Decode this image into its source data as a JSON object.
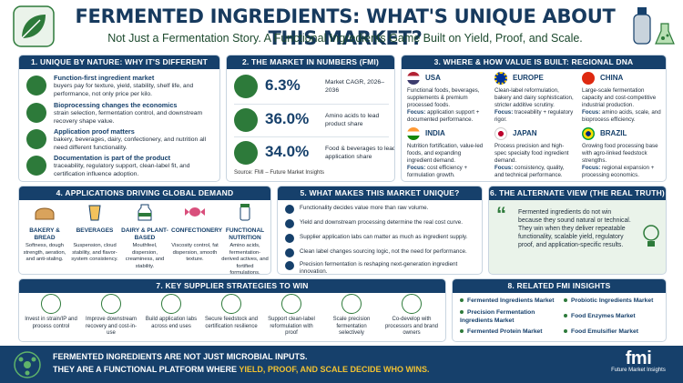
{
  "header": {
    "title": "FERMENTED INGREDIENTS: WHAT'S UNIQUE ABOUT THIS MARKET?",
    "subtitle": "Not Just a Fermentation Story. A Functional Ingredients Game Built on Yield, Proof, and Scale."
  },
  "colors": {
    "navy": "#16406b",
    "green": "#2d7a3a",
    "accent": "#f1c232"
  },
  "unique": {
    "heading": "1. UNIQUE BY NATURE: WHY IT'S DIFFERENT",
    "items": [
      {
        "icon": "gear-icon",
        "title": "Function-first ingredient market",
        "desc": "buyers pay for texture, yield, stability, shelf life, and performance, not only price per kilo."
      },
      {
        "icon": "process-icon",
        "title": "Bioprocessing changes the economics",
        "desc": "strain selection, fermentation control, and downstream recovery shape value."
      },
      {
        "icon": "bowl-icon",
        "title": "Application proof matters",
        "desc": "bakery, beverages, dairy, confectionery, and nutrition all need different functionality."
      },
      {
        "icon": "document-icon",
        "title": "Documentation is part of the product",
        "desc": "traceability, regulatory support, clean-label fit, and certification influence adoption."
      }
    ]
  },
  "numbers": {
    "heading": "2. THE MARKET IN NUMBERS (FMI)",
    "rows": [
      {
        "icon": "chart-icon",
        "value": "6.3%",
        "label": "Market CAGR, 2026–2036"
      },
      {
        "icon": "molecule-icon",
        "value": "36.0%",
        "label": "Amino acids to lead product share"
      },
      {
        "icon": "food-icon",
        "value": "34.0%",
        "label": "Food & beverages to lead application share"
      }
    ],
    "source": "Source: FMI – Future Market Insights"
  },
  "regions": {
    "heading": "3. WHERE & HOW VALUE IS BUILT: REGIONAL DNA",
    "focus_label": "Focus:",
    "list": [
      {
        "name": "USA",
        "flag": "usa-flag-icon",
        "desc": "Functional foods, beverages, supplements & premium processed foods.",
        "focus": "application support + documented performance."
      },
      {
        "name": "EUROPE",
        "flag": "eu-flag-icon",
        "desc": "Clean-label reformulation, bakery and dairy sophistication, stricter additive scrutiny.",
        "focus": "traceability + regulatory rigor."
      },
      {
        "name": "CHINA",
        "flag": "china-flag-icon",
        "desc": "Large-scale fermentation capacity and cost-competitive industrial production.",
        "focus": "amino acids, scale, and bioprocess efficiency."
      },
      {
        "name": "INDIA",
        "flag": "india-flag-icon",
        "desc": "Nutrition fortification, value-led foods, and expanding ingredient demand.",
        "focus": "cost efficiency + formulation growth."
      },
      {
        "name": "JAPAN",
        "flag": "japan-flag-icon",
        "desc": "Process precision and high-spec specialty food ingredient demand.",
        "focus": "consistency, quality, and technical performance."
      },
      {
        "name": "BRAZIL",
        "flag": "brazil-flag-icon",
        "desc": "Growing food processing base with agro-linked feedstock strengths.",
        "focus": "regional expansion + processing economics."
      }
    ]
  },
  "applications": {
    "heading": "4. APPLICATIONS DRIVING GLOBAL DEMAND",
    "items": [
      {
        "icon": "bread-icon",
        "title": "BAKERY & BREAD",
        "desc": "Softness, dough strength, aeration, and anti-staling."
      },
      {
        "icon": "beverage-icon",
        "title": "BEVERAGES",
        "desc": "Suspension, cloud stability, and flavor-system consistency."
      },
      {
        "icon": "milk-icon",
        "title": "DAIRY & PLANT-BASED",
        "desc": "Mouthfeel, dispersion, creaminess, and stability."
      },
      {
        "icon": "candy-icon",
        "title": "CONFECTIONERY",
        "desc": "Viscosity control, fat dispersion, smooth texture."
      },
      {
        "icon": "supplement-icon",
        "title": "FUNCTIONAL NUTRITION",
        "desc": "Amino acids, fermentation-derived actives, and fortified formulations."
      }
    ]
  },
  "makes_unique": {
    "heading": "5. WHAT MAKES THIS MARKET UNIQUE?",
    "items": [
      "Functionality decides value more than raw volume.",
      "Yield and downstream processing determine the real cost curve.",
      "Supplier application labs can matter as much as ingredient supply.",
      "Clean label changes sourcing logic, not the need for performance.",
      "Precision fermentation is reshaping next-generation ingredient innovation."
    ]
  },
  "alternate": {
    "heading": "6. THE ALTERNATE VIEW (THE REAL TRUTH)",
    "quote_mark": "“",
    "text": "Fermented ingredients do not win because they sound natural or technical. They win when they deliver repeatable functionality, scalable yield, regulatory proof, and application-specific results."
  },
  "strategies": {
    "heading": "7. KEY SUPPLIER STRATEGIES TO WIN",
    "items": [
      {
        "icon": "dna-icon",
        "text": "Invest in strain/IP and process control"
      },
      {
        "icon": "recycle-icon",
        "text": "Improve downstream recovery and cost-in-use"
      },
      {
        "icon": "lab-icon",
        "text": "Build application labs across end uses"
      },
      {
        "icon": "shield-icon",
        "text": "Secure feedstock and certification resilience"
      },
      {
        "icon": "leaf-icon",
        "text": "Support clean-label reformulation with proof"
      },
      {
        "icon": "flask-icon",
        "text": "Scale precision fermentation selectively"
      },
      {
        "icon": "handshake-icon",
        "text": "Co-develop with processors and brand owners"
      }
    ]
  },
  "insights": {
    "heading": "8. RELATED FMI INSIGHTS",
    "items": [
      "Fermented Ingredients Market",
      "Probiotic Ingredients Market",
      "Precision Fermentation Ingredients Market",
      "Food Enzymes Market",
      "Fermented Protein Market",
      "Food Emulsifier Market"
    ]
  },
  "footer": {
    "line1": "FERMENTED INGREDIENTS ARE NOT JUST MICROBIAL INPUTS.",
    "line2_prefix": "THEY ARE A FUNCTIONAL PLATFORM WHERE ",
    "line2_highlight": "YIELD, PROOF, AND SCALE DECIDE WHO WINS.",
    "brand_mark": "fmi",
    "brand_name": "Future Market Insights"
  }
}
